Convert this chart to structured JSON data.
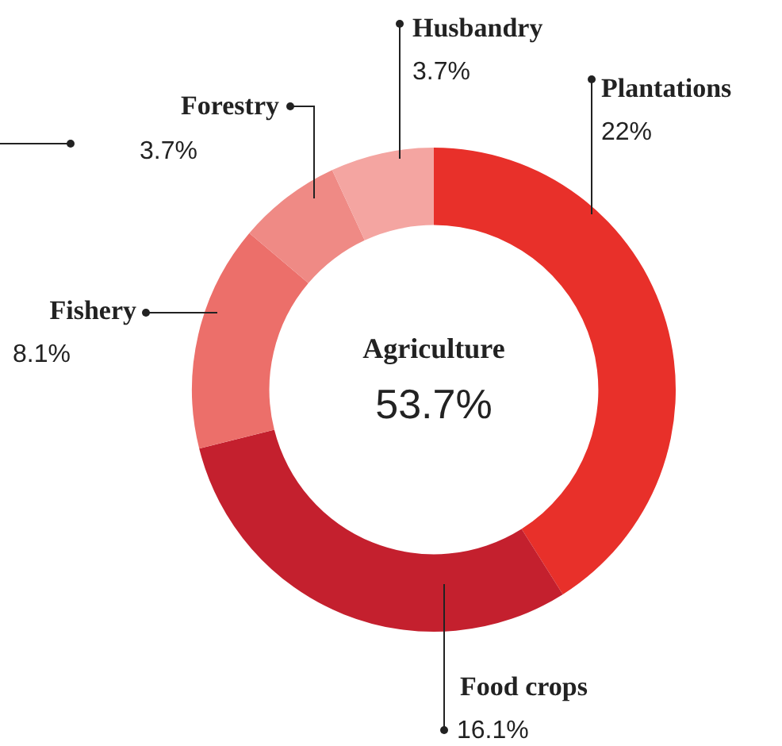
{
  "chart_data": {
    "type": "donut",
    "title": "Agriculture",
    "subtitle": "53.7%",
    "categories": [
      "Plantations",
      "Food crops",
      "Fishery",
      "Forestry",
      "Husbandry"
    ],
    "values": [
      22,
      16.1,
      8.1,
      3.7,
      3.7
    ],
    "colors": [
      "#e8302a",
      "#c4202e",
      "#ec6f6a",
      "#ef8a85",
      "#f4a5a1"
    ],
    "value_labels": [
      "22%",
      "16.1%",
      "8.1%",
      "3.7%",
      "3.7%"
    ],
    "legend": false
  }
}
